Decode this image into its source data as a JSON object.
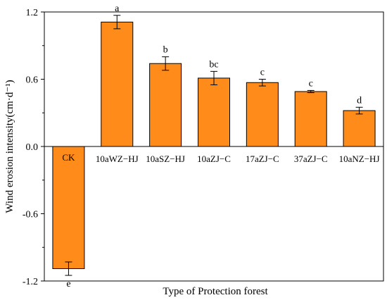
{
  "chart_data": {
    "type": "bar",
    "xlabel": "Type of Protection forest",
    "ylabel": "Wind erosion intensity(cm·d⁻¹)",
    "ylim": [
      -1.2,
      1.2
    ],
    "yticks": [
      -1.2,
      -0.6,
      0.0,
      0.6,
      1.2
    ],
    "ytick_labels": [
      "-1.2",
      "-0.6",
      "0.0",
      "0.6",
      "1.2"
    ],
    "categories": [
      "CK",
      "10aWZ−HJ",
      "10aSZ−HJ",
      "10aZJ−C",
      "17aZJ−C",
      "37aZJ−C",
      "10aNZ−HJ"
    ],
    "values": [
      -1.09,
      1.11,
      0.74,
      0.61,
      0.57,
      0.49,
      0.32
    ],
    "errors": [
      0.06,
      0.06,
      0.06,
      0.06,
      0.03,
      0.01,
      0.03
    ],
    "significance": [
      "e",
      "a",
      "b",
      "bc",
      "c",
      "c",
      "d"
    ],
    "bar_color": "#FF8C1A",
    "bar_edge_color": "#000000",
    "grid": false,
    "legend": "none"
  }
}
